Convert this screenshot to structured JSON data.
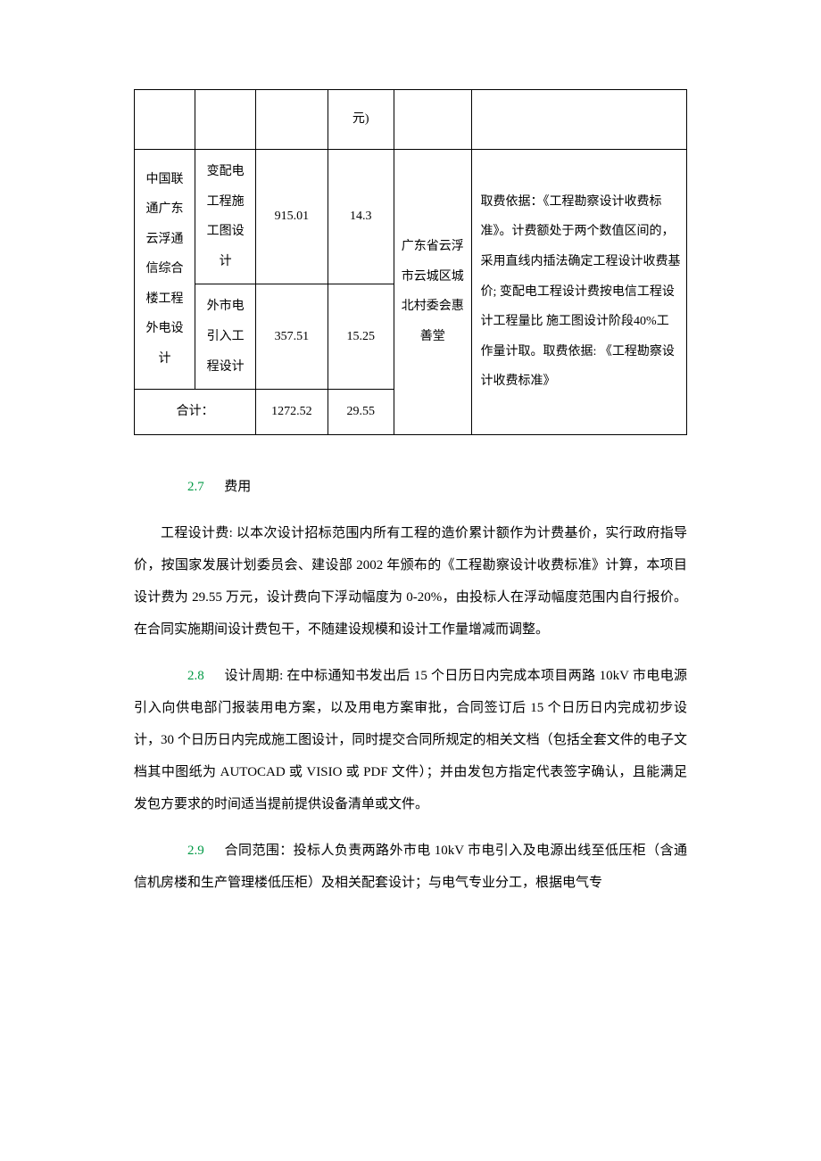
{
  "table": {
    "header_val2_suffix": "元)",
    "project_merged": "中国联通广东云浮通信综合楼工程外电设计",
    "sub1": "变配电工程施工图设计",
    "val1_row1": "915.01",
    "val2_row1": "14.3",
    "sub2": "外市电引入工程设计",
    "val1_row2": "357.51",
    "val2_row2": "15.25",
    "location": "广东省云浮市云城区城北村委会惠善堂",
    "note": "取费依据：《工程勘察设计收费标准》。计费额处于两个数值区间的，采用直线内插法确定工程设计收费基价; 变配电工程设计费按电信工程设计工程量比 施工图设计阶段40%工作量计取。取费依据: 《工程勘察设计收费标准》",
    "total_label": "合计：",
    "total_val1": "1272.52",
    "total_val2": "29.55"
  },
  "sections": {
    "s27": {
      "num": "2.7",
      "title": "费用"
    },
    "p27_body": "工程设计费: 以本次设计招标范围内所有工程的造价累计额作为计费基价，实行政府指导价，按国家发展计划委员会、建设部 2002 年颁布的《工程勘察设计收费标准》计算，本项目设计费为 29.55 万元，设计费向下浮动幅度为 0-20%，由投标人在浮动幅度范围内自行报价。在合同实施期间设计费包干，不随建设规模和设计工作量增减而调整。",
    "s28": {
      "num": "2.8",
      "title": "设计周期:"
    },
    "p28_body": "在中标通知书发出后 15 个日历日内完成本项目两路 10kV 市电电源引入向供电部门报装用电方案，以及用电方案审批，合同签订后 15 个日历日内完成初步设计，30 个日历日内完成施工图设计，同时提交合同所规定的相关文档（包括全套文件的电子文档其中图纸为 AUTOCAD 或 VISIO 或 PDF 文件）；并由发包方指定代表签字确认，且能满足发包方要求的时间适当提前提供设备清单或文件。",
    "s29": {
      "num": "2.9",
      "title": "合同范围："
    },
    "p29_body": "投标人负责两路外市电 10kV 市电引入及电源出线至低压柜（含通信机房楼和生产管理楼低压柜）及相关配套设计；与电气专业分工，根据电气专"
  },
  "colors": {
    "section_num": "#009944",
    "text": "#000000",
    "background": "#ffffff",
    "border": "#000000"
  },
  "fonts": {
    "body_size": 15,
    "table_size": 14,
    "family": "SimSun"
  }
}
